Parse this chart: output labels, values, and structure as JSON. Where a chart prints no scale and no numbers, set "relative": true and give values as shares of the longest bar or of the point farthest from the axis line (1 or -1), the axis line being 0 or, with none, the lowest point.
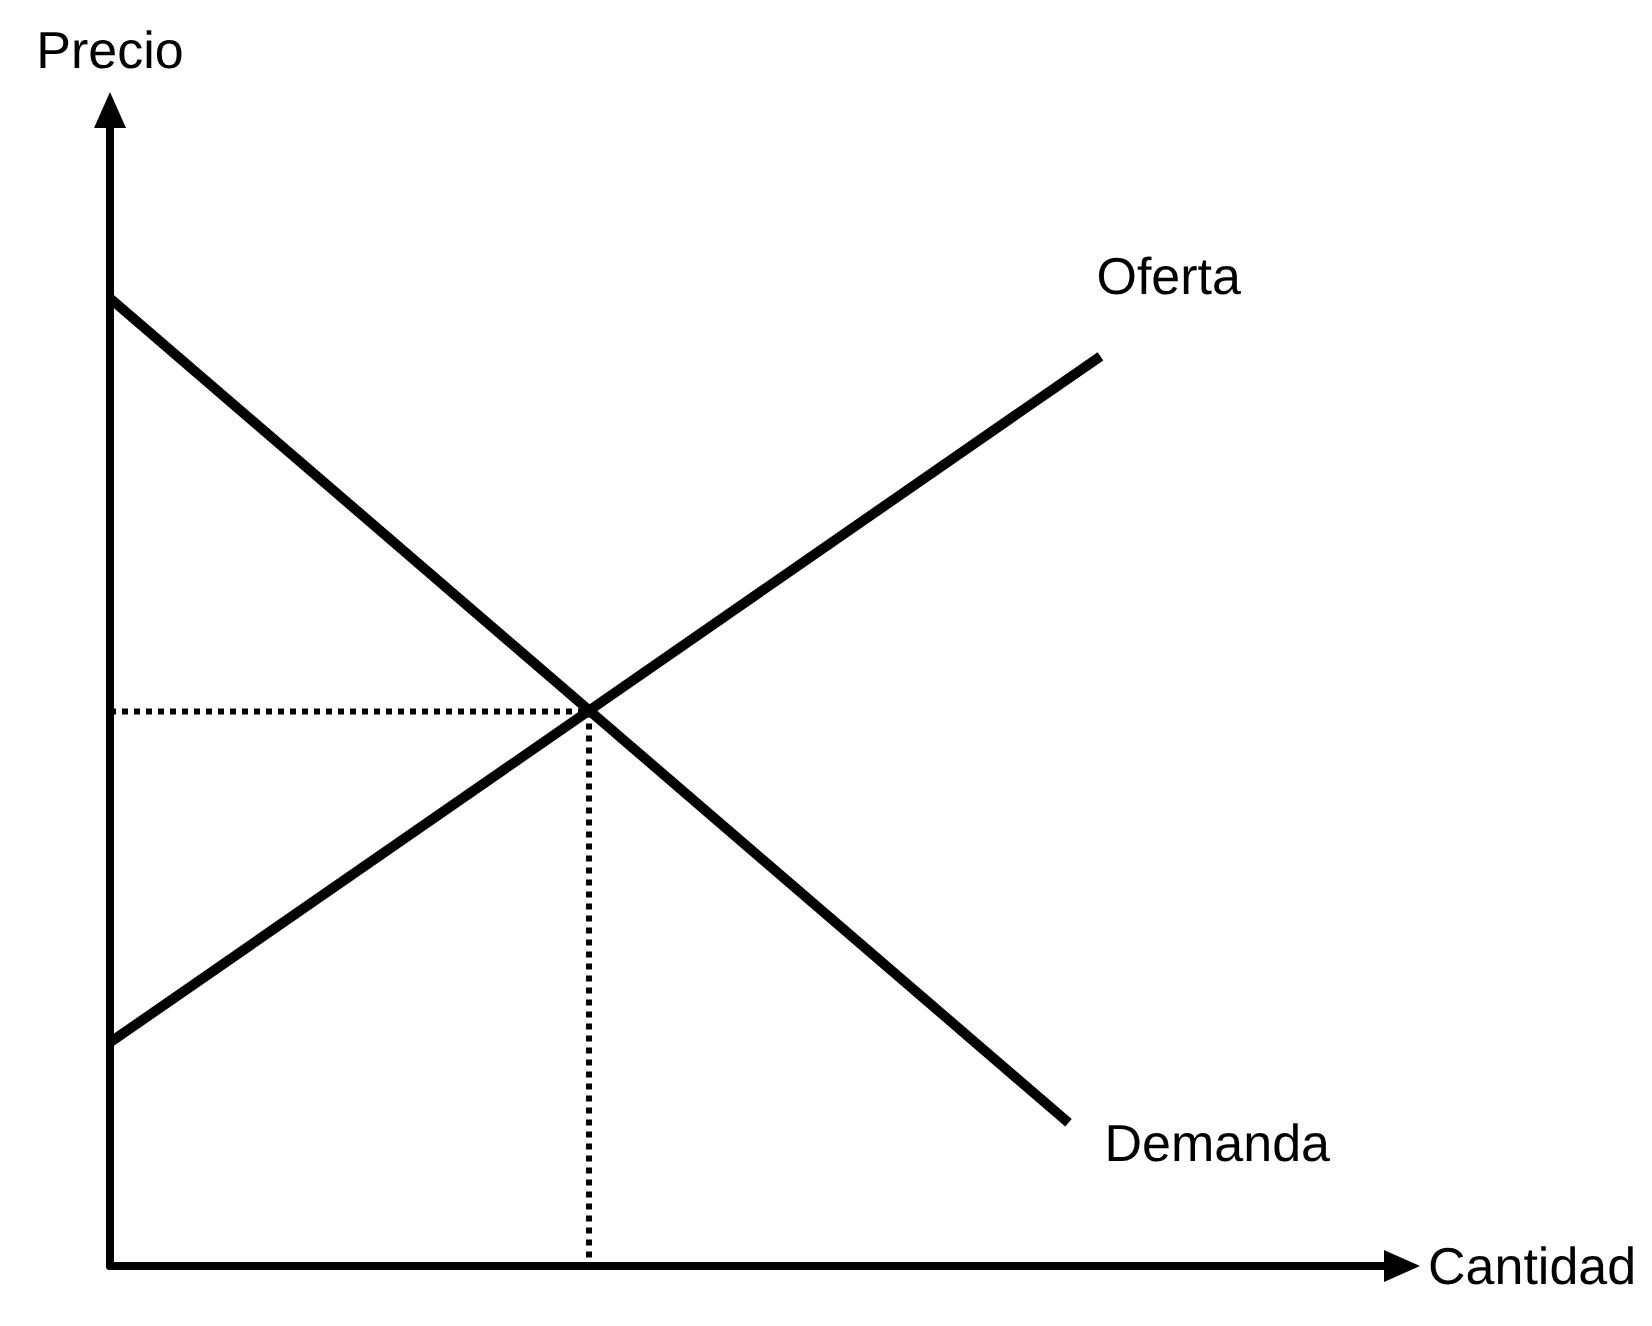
{
  "chart_data": {
    "type": "line",
    "relative": true,
    "xlabel": "Cantidad",
    "ylabel": "Precio",
    "grid": false,
    "legend": false,
    "marker": "none",
    "categories": [
      null,
      null,
      null,
      null,
      null,
      null,
      null,
      null,
      null,
      null,
      null,
      null,
      null,
      null,
      null,
      null,
      null,
      null,
      null,
      null,
      null,
      null,
      null,
      null,
      null,
      null,
      null,
      null,
      null,
      null,
      null,
      null,
      null,
      null,
      null,
      null,
      null,
      null,
      null,
      null,
      null
    ],
    "series": [
      {
        "name": "Demanda",
        "color": "#000000",
        "values": [
          1,
          null,
          null,
          null,
          null,
          null,
          null,
          null,
          null,
          null,
          null,
          null,
          null,
          null,
          null,
          null,
          null,
          null,
          null,
          null,
          null,
          null,
          null,
          null,
          null,
          null,
          null,
          null,
          null,
          null,
          0.148,
          null,
          null,
          null,
          null,
          null,
          null,
          null,
          null,
          null,
          null
        ]
      },
      {
        "name": "Oferta",
        "color": "#000000",
        "values": [
          0.231,
          null,
          null,
          null,
          null,
          null,
          null,
          null,
          null,
          null,
          null,
          null,
          null,
          null,
          null,
          null,
          null,
          null,
          null,
          null,
          null,
          null,
          null,
          null,
          null,
          null,
          null,
          null,
          null,
          null,
          null,
          0.94,
          null,
          null,
          null,
          null,
          null,
          null,
          null,
          null,
          null
        ]
      },
      {
        "color": "#000000",
        "line_style": "dotted",
        "values": [
          0.573,
          null,
          null,
          null,
          null,
          null,
          null,
          null,
          null,
          null,
          null,
          null,
          null,
          null,
          null,
          0.573,
          null,
          null,
          null,
          null,
          null,
          null,
          null,
          null,
          null,
          null,
          null,
          null,
          null,
          null,
          null,
          null,
          null,
          null,
          null,
          null,
          null,
          null,
          null,
          null,
          null
        ]
      }
    ]
  }
}
